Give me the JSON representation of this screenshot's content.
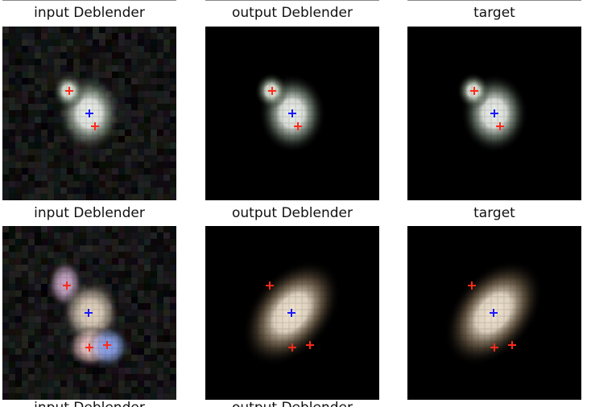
{
  "grid": {
    "rows": [
      {
        "panels": [
          {
            "id": "r0c0",
            "title": "input Deblender",
            "kind": "noisy",
            "variant": "A"
          },
          {
            "id": "r0c1",
            "title": "output Deblender",
            "kind": "clean",
            "variant": "A"
          },
          {
            "id": "r0c2",
            "title": "target",
            "kind": "clean",
            "variant": "A"
          }
        ]
      },
      {
        "panels": [
          {
            "id": "r1c0",
            "title": "input Deblender",
            "kind": "noisy",
            "variant": "B"
          },
          {
            "id": "r1c1",
            "title": "output Deblender",
            "kind": "clean",
            "variant": "B"
          },
          {
            "id": "r1c2",
            "title": "target",
            "kind": "clean",
            "variant": "B"
          }
        ]
      }
    ],
    "cut_titles": [
      "input Deblender",
      "output Deblender",
      ""
    ]
  },
  "markers": {
    "center_color": "#1a1aff",
    "neighbor_color": "#ff2a1a",
    "symbol": "+"
  },
  "colors": {
    "background": "#000000",
    "galaxy_core_A": "#eef2ec",
    "galaxy_core_B": "#f3e6d2"
  }
}
